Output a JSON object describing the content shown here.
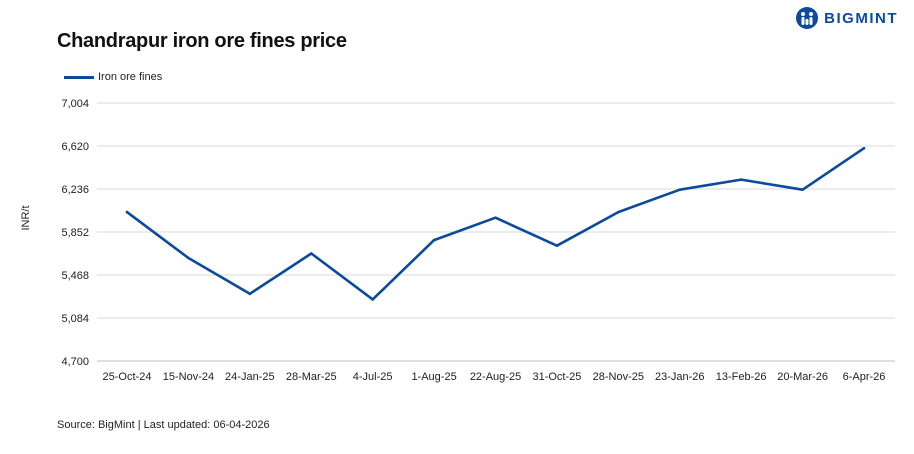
{
  "header": {
    "title": "Chandrapur iron ore fines price",
    "brand": "BIGMINT",
    "brand_icon": "bigmint-logo-icon"
  },
  "footer": {
    "source": "Source: BigMint | Last updated: 06-04-2026"
  },
  "colors": {
    "series": "#0b4a9c",
    "grid": "#d9d9d9",
    "brand": "#0b4a9c"
  },
  "chart_data": {
    "type": "line",
    "title": "Chandrapur iron ore fines price",
    "xlabel": "",
    "ylabel": "INR/t",
    "ylim": [
      4700,
      7004
    ],
    "yticks": [
      "7,004",
      "6,620",
      "6,236",
      "5,852",
      "5,468",
      "5,084",
      "4,700"
    ],
    "grid": true,
    "legend_position": "top-left",
    "categories": [
      "25-Oct-24",
      "15-Nov-24",
      "24-Jan-25",
      "28-Mar-25",
      "4-Jul-25",
      "1-Aug-25",
      "22-Aug-25",
      "31-Oct-25",
      "28-Nov-25",
      "23-Jan-26",
      "13-Feb-26",
      "20-Mar-26",
      "6-Apr-26"
    ],
    "series": [
      {
        "name": "Iron ore fines",
        "values": [
          6030,
          5620,
          5300,
          5660,
          5250,
          5780,
          5980,
          5730,
          6030,
          6230,
          6320,
          6230,
          6600
        ]
      }
    ]
  }
}
